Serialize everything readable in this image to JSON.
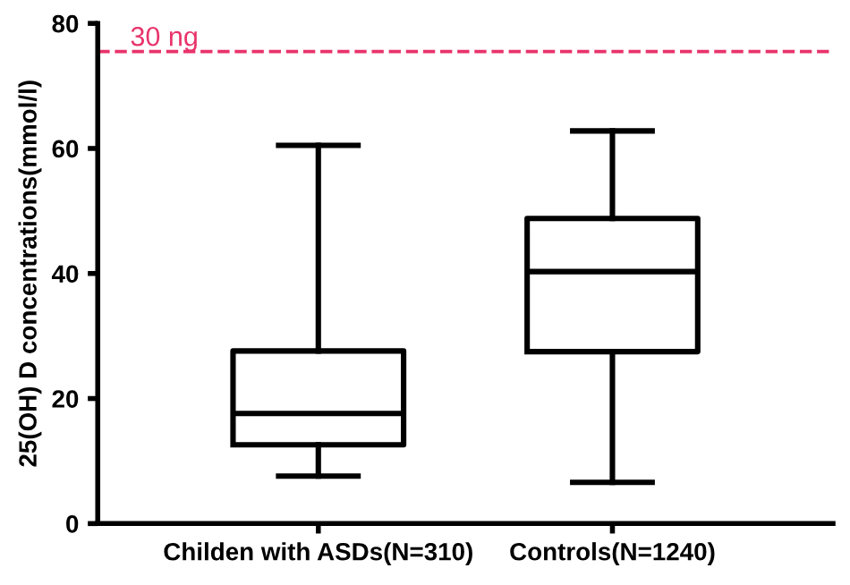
{
  "chart_data": {
    "type": "box",
    "ylabel": "25(OH) D concentrations(mmol/l)",
    "categories": [
      "Childen with ASDs(N=310)",
      "Controls(N=1240)"
    ],
    "boxes": [
      {
        "low": 7.6,
        "q1": 12.6,
        "median": 17.6,
        "q3": 27.6,
        "high": 60.5
      },
      {
        "low": 6.6,
        "q1": 27.5,
        "median": 40.3,
        "q3": 48.8,
        "high": 62.8
      }
    ],
    "ylim": [
      0,
      80
    ],
    "yticks": [
      0,
      20,
      40,
      60,
      80
    ],
    "grid": false,
    "ref_lines": [
      {
        "axis": "y",
        "value": 75.5,
        "label": "30 ng",
        "color": "#e8336b",
        "line_style": "dashed"
      }
    ]
  }
}
